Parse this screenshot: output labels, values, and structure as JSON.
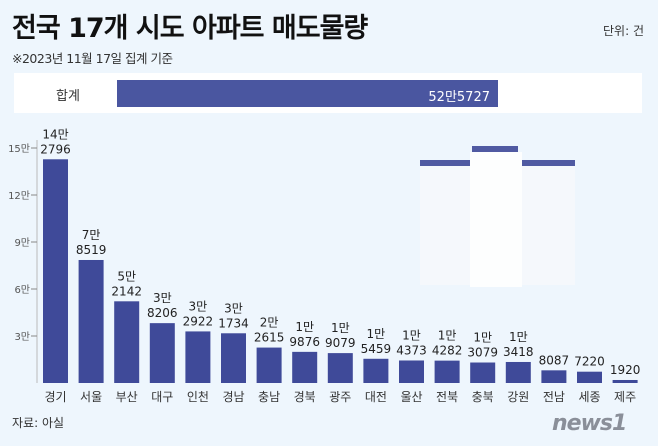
{
  "header": {
    "title": "전국 17개 시도 아파트 매도물량",
    "unit": "단위: 건",
    "subtitle": "※2023년 11월 17일 집계 기준"
  },
  "total": {
    "label": "합계",
    "value_text": "52만5727",
    "value": 525727
  },
  "footer": {
    "source": "자료: 아실",
    "logo": "news1"
  },
  "colors": {
    "bar": "#3f4a99",
    "background": "#eef6fd"
  },
  "chart_data": {
    "type": "bar",
    "title": "전국 17개 시도 아파트 매도물량",
    "ylabel": "",
    "ylim": [
      0,
      150000
    ],
    "grid": false,
    "y_ticks": [
      {
        "value": 30000,
        "label": "3만"
      },
      {
        "value": 60000,
        "label": "6만"
      },
      {
        "value": 90000,
        "label": "9만"
      },
      {
        "value": 120000,
        "label": "12만"
      },
      {
        "value": 150000,
        "label": "15만"
      }
    ],
    "categories": [
      "경기",
      "서울",
      "부산",
      "대구",
      "인천",
      "경남",
      "충남",
      "경북",
      "광주",
      "대전",
      "울산",
      "전북",
      "충북",
      "강원",
      "전남",
      "세종",
      "제주"
    ],
    "values": [
      142796,
      78519,
      52142,
      38206,
      32922,
      31734,
      22615,
      19876,
      19079,
      15459,
      14373,
      14282,
      13079,
      13418,
      8087,
      7220,
      1920
    ],
    "data_labels": [
      [
        "14만",
        "2796"
      ],
      [
        "7만",
        "8519"
      ],
      [
        "5만",
        "2142"
      ],
      [
        "3만",
        "8206"
      ],
      [
        "3만",
        "2922"
      ],
      [
        "3만",
        "1734"
      ],
      [
        "2만",
        "2615"
      ],
      [
        "1만",
        "9876"
      ],
      [
        "1만",
        "9079"
      ],
      [
        "1만",
        "5459"
      ],
      [
        "1만",
        "4373"
      ],
      [
        "1만",
        "4282"
      ],
      [
        "1만",
        "3079"
      ],
      [
        "1만",
        "3418"
      ],
      [
        "",
        "8087"
      ],
      [
        "",
        "7220"
      ],
      [
        "",
        "1920"
      ]
    ]
  }
}
